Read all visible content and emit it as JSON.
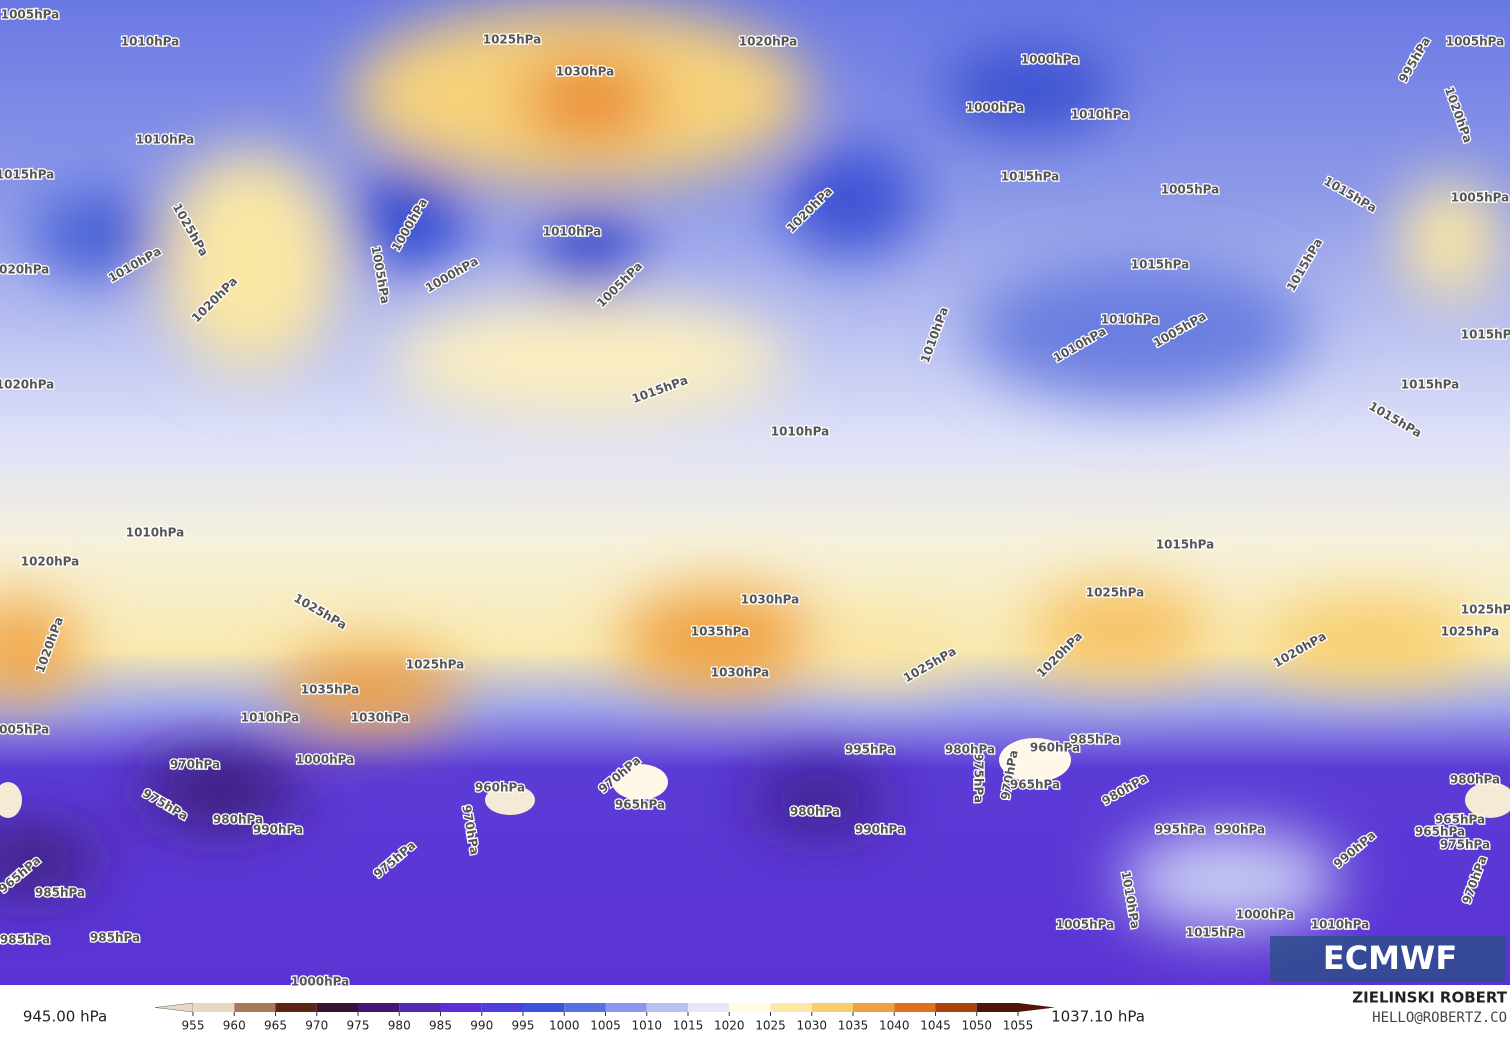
{
  "map": {
    "contour_labels": [
      "1005hPa",
      "1010hPa",
      "1015hPa",
      "1025hPa",
      "1030hPa",
      "1020hPa",
      "1000hPa",
      "995hPa",
      "1005hPa",
      "1000hPa",
      "1010hPa",
      "1020hPa",
      "1015hPa",
      "1005hPa",
      "1020hPa",
      "1015hPa",
      "1025hPa",
      "1010hPa",
      "1000hPa",
      "1005hPa",
      "1010hPa",
      "1000hPa",
      "1005hPa",
      "1010hPa",
      "1005hPa",
      "1020hPa",
      "1015hPa",
      "1015hPa",
      "1020hPa",
      "1010hPa",
      "1010hPa",
      "1005hPa",
      "1010hPa",
      "1015hPa",
      "1020hPa",
      "1015hPa",
      "1015hPa",
      "1010hPa",
      "1015hPa",
      "1010hPa",
      "1020hPa",
      "1015hPa",
      "1025hPa",
      "1025hPa",
      "1035hPa",
      "1030hPa",
      "1025hPa",
      "1035hPa",
      "1030hPa",
      "1025hPa",
      "1020hPa",
      "1020hPa",
      "1025hPa",
      "1030hPa",
      "1025hPa",
      "1020hPa",
      "1005hPa",
      "1010hPa",
      "1000hPa",
      "995hPa",
      "970hPa",
      "975hPa",
      "980hPa",
      "990hPa",
      "965hPa",
      "960hPa",
      "975hPa",
      "970hPa",
      "965hPa",
      "970hPa",
      "980hPa",
      "975hPa",
      "980hPa",
      "965hPa",
      "960hPa",
      "985hPa",
      "980hPa",
      "990hPa",
      "995hPa",
      "990hPa",
      "970hPa",
      "965hPa",
      "985hPa",
      "975hPa",
      "965hPa",
      "970hPa",
      "990hPa",
      "985hPa",
      "985hPa",
      "1000hPa",
      "1005hPa",
      "1010hPa",
      "1015hPa",
      "1000hPa",
      "1010hPa",
      "980hPa"
    ],
    "colorbar": {
      "min_label": "945.00 hPa",
      "max_label": "1037.10 hPa",
      "ticks": [
        955,
        960,
        965,
        970,
        975,
        980,
        985,
        990,
        995,
        1000,
        1005,
        1010,
        1015,
        1020,
        1025,
        1030,
        1035,
        1040,
        1045,
        1050,
        1055
      ],
      "colors": [
        "#e6d8c2",
        "#a87a5a",
        "#5c2612",
        "#3a1034",
        "#45157a",
        "#5426b8",
        "#5a2fd8",
        "#4c3ee0",
        "#3b52dc",
        "#5470e2",
        "#8a98ea",
        "#b9c0f2",
        "#e6e8fa",
        "#fffbe4",
        "#fde9a4",
        "#f9cc6c",
        "#f0a040",
        "#e0701e",
        "#a8420e",
        "#4e1606"
      ]
    },
    "credit": {
      "name": "ZIELINSKI ROBERT",
      "email": "HELLO@ROBERTZ.CO"
    },
    "logo": "ECMWF"
  }
}
